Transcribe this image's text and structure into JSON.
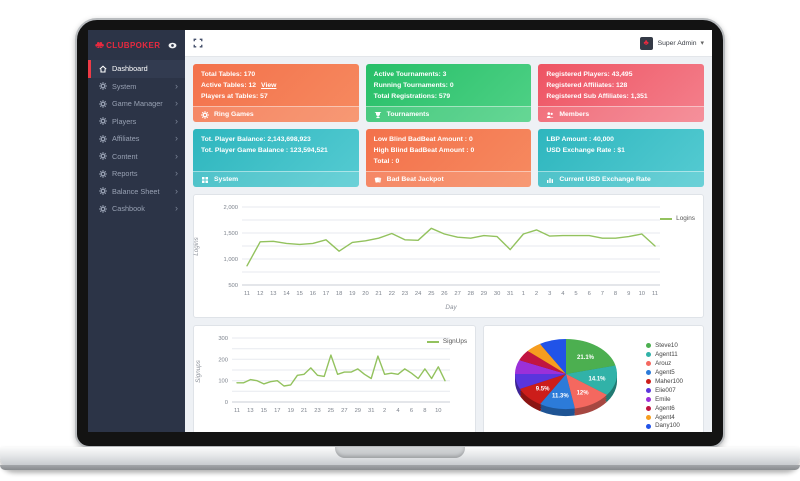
{
  "brand": {
    "name": "CLUBPOKER",
    "color": "#e8293f"
  },
  "topbar": {
    "user": "Super Admin"
  },
  "sidebar": {
    "items": [
      {
        "label": "Dashboard",
        "icon": "home",
        "active": true,
        "chevron": false
      },
      {
        "label": "System",
        "icon": "gear",
        "active": false,
        "chevron": true
      },
      {
        "label": "Game Manager",
        "icon": "gear",
        "active": false,
        "chevron": true
      },
      {
        "label": "Players",
        "icon": "gear",
        "active": false,
        "chevron": true
      },
      {
        "label": "Affiliates",
        "icon": "gear",
        "active": false,
        "chevron": true
      },
      {
        "label": "Content",
        "icon": "gear",
        "active": false,
        "chevron": true
      },
      {
        "label": "Reports",
        "icon": "gear",
        "active": false,
        "chevron": true
      },
      {
        "label": "Balance Sheet",
        "icon": "gear",
        "active": false,
        "chevron": true
      },
      {
        "label": "Cashbook",
        "icon": "gear",
        "active": false,
        "chevron": true
      }
    ]
  },
  "stat_cards": [
    {
      "color": "orange",
      "hex": "#f3714b",
      "lines": [
        "Total Tables: 170",
        "Active Tables: 12",
        "Players at Tables: 57"
      ],
      "view_link": {
        "line_index": 1,
        "text": "View"
      },
      "footer": {
        "icon": "gear",
        "label": "Ring Games"
      }
    },
    {
      "color": "green",
      "hex": "#29c06c",
      "lines": [
        "Active Tournaments: 3",
        "Running Tournaments: 0",
        "Total Registrations: 579"
      ],
      "footer": {
        "icon": "trophy",
        "label": "Tournaments"
      }
    },
    {
      "color": "red",
      "hex": "#ee5463",
      "lines": [
        "Registered Players: 43,495",
        "Registered Affiliates: 128",
        "Registered Sub Affiliates: 1,351"
      ],
      "footer": {
        "icon": "users",
        "label": "Members"
      }
    },
    {
      "color": "teal",
      "hex": "#2eb6be",
      "lines": [
        "Tot. Player Balance: 2,143,698,923",
        "Tot. Player Game Balance : 123,594,521"
      ],
      "footer": {
        "icon": "grid",
        "label": "System"
      }
    },
    {
      "color": "orange",
      "hex": "#f3714b",
      "lines": [
        "Low Blind BadBeat Amount : 0",
        "High Blind BadBeat Amount : 0",
        "Total : 0"
      ],
      "footer": {
        "icon": "cards",
        "label": "Bad Beat Jackpot"
      }
    },
    {
      "color": "teal",
      "hex": "#2eb6be",
      "lines": [
        "LBP Amount : 40,000",
        "USD Exchange Rate : $1"
      ],
      "footer": {
        "icon": "chart",
        "label": "Current USD Exchange Rate"
      }
    }
  ],
  "chart_data": [
    {
      "type": "line",
      "name": "logins",
      "title": "Logins",
      "x": [
        "11",
        "12",
        "13",
        "14",
        "15",
        "16",
        "17",
        "18",
        "19",
        "20",
        "21",
        "22",
        "23",
        "24",
        "25",
        "26",
        "27",
        "28",
        "29",
        "30",
        "31",
        "1",
        "2",
        "3",
        "4",
        "5",
        "6",
        "7",
        "8",
        "9",
        "10",
        "11"
      ],
      "series": [
        {
          "name": "Logins",
          "values": [
            870,
            1330,
            1340,
            1300,
            1280,
            1300,
            1370,
            1150,
            1320,
            1350,
            1400,
            1490,
            1370,
            1360,
            1590,
            1480,
            1420,
            1400,
            1450,
            1430,
            1180,
            1480,
            1560,
            1440,
            1450,
            1450,
            1450,
            1400,
            1400,
            1430,
            1480,
            1250
          ]
        }
      ],
      "ylabel": "Logins",
      "xlabel": "Day",
      "ylim": [
        500,
        2000
      ],
      "yticks": [
        500,
        1000,
        1500,
        2000
      ],
      "minor_step": 250,
      "label_every": 1,
      "line_color": "#93c25e",
      "grid": true,
      "legend_position": "top-right"
    },
    {
      "type": "line",
      "name": "signups",
      "title": "SignUps",
      "x": [
        "11",
        "12",
        "13",
        "14",
        "15",
        "16",
        "17",
        "18",
        "19",
        "20",
        "21",
        "22",
        "23",
        "24",
        "25",
        "26",
        "27",
        "28",
        "29",
        "30",
        "31",
        "1",
        "2",
        "3",
        "4",
        "5",
        "6",
        "7",
        "8",
        "9",
        "10",
        "11"
      ],
      "series": [
        {
          "name": "SignUps",
          "values": [
            90,
            90,
            105,
            100,
            85,
            95,
            100,
            75,
            80,
            125,
            130,
            160,
            125,
            120,
            220,
            130,
            140,
            140,
            155,
            130,
            110,
            215,
            130,
            135,
            130,
            155,
            135,
            110,
            155,
            110,
            165,
            100
          ]
        }
      ],
      "ylabel": "Signups",
      "xlabel": "",
      "ylim": [
        0,
        300
      ],
      "yticks": [
        0,
        100,
        200,
        300
      ],
      "minor_step": 50,
      "label_every": 2,
      "line_color": "#93c25e",
      "grid": true,
      "legend_position": "top-right"
    },
    {
      "type": "pie",
      "name": "top-agents",
      "legend_position": "right",
      "slices": [
        {
          "name": "Steve10",
          "value": 21.1,
          "label": "21.1%",
          "color": "#4caf50"
        },
        {
          "name": "Agent11",
          "value": 14.1,
          "label": "14.1%",
          "color": "#31b2a8"
        },
        {
          "name": "Arouz",
          "value": 12.0,
          "label": "12%",
          "color": "#f4685f"
        },
        {
          "name": "Agent5",
          "value": 11.3,
          "label": "11.3%",
          "color": "#2c7bd9"
        },
        {
          "name": "Maher100",
          "value": 9.5,
          "label": "9.5%",
          "color": "#cc1d1a"
        },
        {
          "name": "Elie007",
          "value": 7.0,
          "label": "",
          "color": "#5a35dd"
        },
        {
          "name": "Emile",
          "value": 6.5,
          "label": "",
          "color": "#9b30d9"
        },
        {
          "name": "Agent6",
          "value": 5.0,
          "label": "",
          "color": "#c11540"
        },
        {
          "name": "Agent4",
          "value": 5.0,
          "label": "",
          "color": "#f69d1f"
        },
        {
          "name": "Dany100",
          "value": 8.5,
          "label": "",
          "color": "#2153e8"
        }
      ]
    }
  ]
}
